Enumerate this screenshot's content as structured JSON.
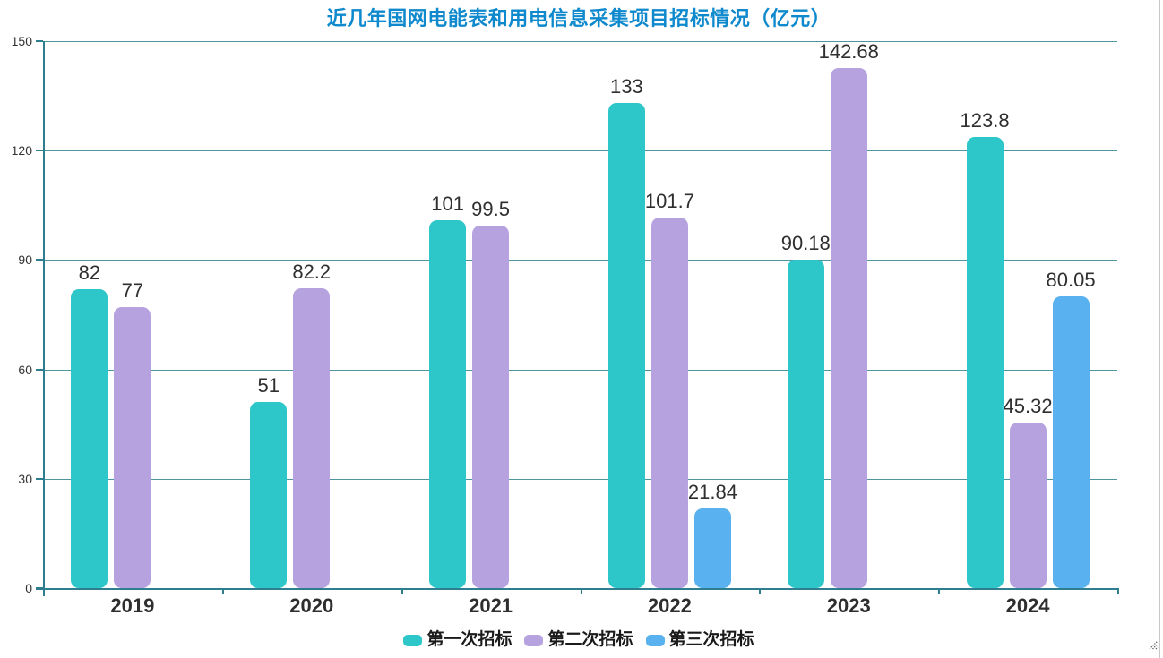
{
  "chart": {
    "title": "近几年国网电能表和用电信息采集项目招标情况（亿元）",
    "title_color": "#0e89cd"
  },
  "chart_data": {
    "type": "bar",
    "categories": [
      "2019",
      "2020",
      "2021",
      "2022",
      "2023",
      "2024"
    ],
    "series": [
      {
        "name": "第一次招标",
        "color": "#2ec7c9",
        "values": [
          82,
          51,
          101,
          133,
          90.18,
          123.8
        ]
      },
      {
        "name": "第二次招标",
        "color": "#b6a2de",
        "values": [
          77,
          82.2,
          99.5,
          101.7,
          142.68,
          45.32
        ]
      },
      {
        "name": "第三次招标",
        "color": "#5ab1ef",
        "values": [
          null,
          null,
          null,
          21.84,
          null,
          80.05
        ]
      }
    ],
    "ylim": [
      0,
      150
    ],
    "yticks": [
      0,
      30,
      60,
      90,
      120,
      150
    ],
    "grid": true,
    "legend_position": "bottom",
    "axis_color": "#2e7e8f",
    "gridline_color": "#4f95a0",
    "label_color": "#2f2f2f"
  },
  "window": {
    "resize_grip_icon": "resize-grip"
  }
}
